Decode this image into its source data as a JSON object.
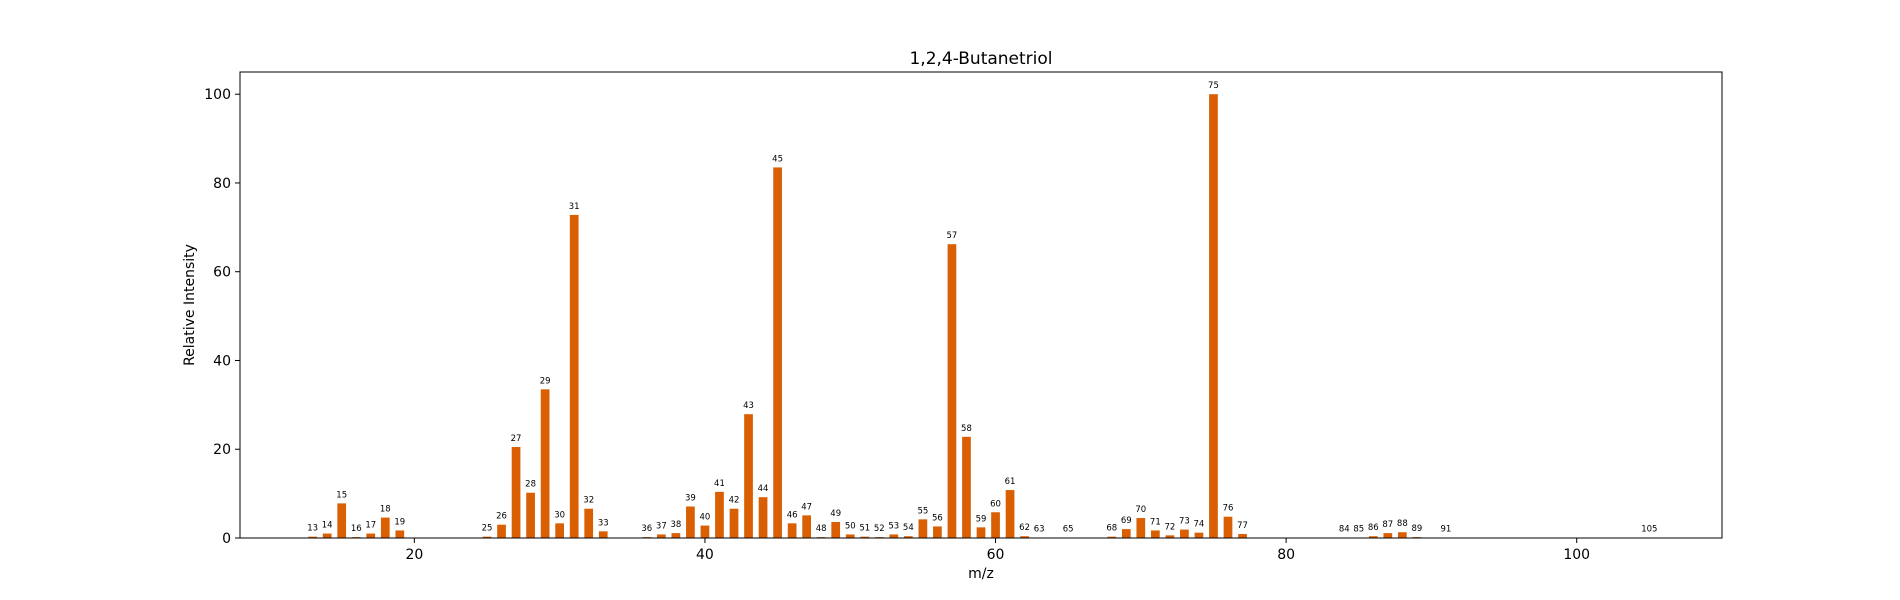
{
  "chart_data": {
    "type": "bar",
    "title": "1,2,4-Butanetriol",
    "xlabel": "m/z",
    "ylabel": "Relative Intensity",
    "xlim": [
      8,
      110
    ],
    "ylim": [
      0,
      105
    ],
    "xticks": [
      20,
      40,
      60,
      80,
      100
    ],
    "yticks": [
      0,
      20,
      40,
      60,
      80,
      100
    ],
    "bar_color": "#d95f02",
    "grid": false,
    "x": [
      13,
      14,
      15,
      16,
      17,
      18,
      19,
      25,
      26,
      27,
      28,
      29,
      30,
      31,
      32,
      33,
      36,
      37,
      38,
      39,
      40,
      41,
      42,
      43,
      44,
      45,
      46,
      47,
      48,
      49,
      50,
      51,
      52,
      53,
      54,
      55,
      56,
      57,
      58,
      59,
      60,
      61,
      62,
      63,
      65,
      68,
      69,
      70,
      71,
      72,
      73,
      74,
      75,
      76,
      77,
      84,
      85,
      86,
      87,
      88,
      89,
      91,
      105
    ],
    "values": [
      0.3,
      1.0,
      7.8,
      0.2,
      1.0,
      4.6,
      1.7,
      0.3,
      3.0,
      20.5,
      10.2,
      33.5,
      3.3,
      72.8,
      6.6,
      1.5,
      0.2,
      0.8,
      1.1,
      7.1,
      2.8,
      10.4,
      6.6,
      27.9,
      9.2,
      83.5,
      3.3,
      5.1,
      0.2,
      3.6,
      0.8,
      0.3,
      0.2,
      0.8,
      0.4,
      4.2,
      2.6,
      66.2,
      22.8,
      2.4,
      5.8,
      10.8,
      0.4,
      0.1,
      0.1,
      0.3,
      2.0,
      4.5,
      1.7,
      0.6,
      1.9,
      1.2,
      100.0,
      4.8,
      0.9,
      0.1,
      0.1,
      0.4,
      1.1,
      1.3,
      0.2,
      0.1,
      0.1
    ]
  }
}
